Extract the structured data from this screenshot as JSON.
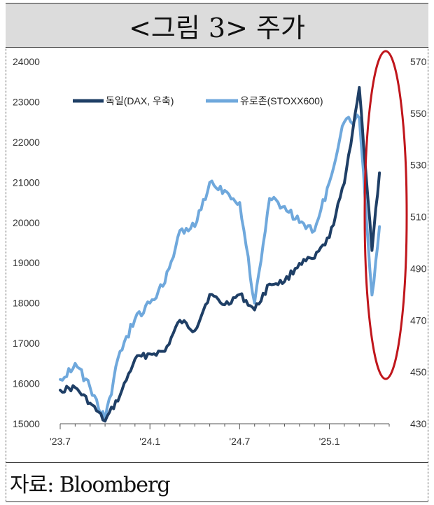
{
  "title": "<그림 3> 주가",
  "source": "자료: Bloomberg",
  "colors": {
    "dax": "#1f3f66",
    "stoxx": "#6fa8dc",
    "circle": "#c0161c"
  },
  "chart_data": {
    "type": "line",
    "title": "<그림 3> 주가",
    "x_ticks": [
      "'23.7",
      "'24.1",
      "'24.7",
      "'25.1"
    ],
    "y_left": {
      "min": 15000,
      "max": 24000,
      "ticks": [
        15000,
        16000,
        17000,
        18000,
        19000,
        20000,
        21000,
        22000,
        23000,
        24000
      ]
    },
    "y_right": {
      "min": 430,
      "max": 570,
      "ticks": [
        430,
        450,
        470,
        490,
        510,
        530,
        550,
        570
      ]
    },
    "legend_position": "top-left",
    "x_range": [
      "2023-07",
      "2025-04"
    ],
    "series": [
      {
        "name": "독일(DAX, 우축)",
        "axis": "right",
        "dates": [
          "2023-07",
          "2023-08",
          "2023-09",
          "2023-10",
          "2023-11",
          "2023-12",
          "2024-01",
          "2024-02",
          "2024-03",
          "2024-04",
          "2024-05",
          "2024-06",
          "2024-07",
          "2024-08",
          "2024-09",
          "2024-10",
          "2024-11",
          "2024-12",
          "2025-01",
          "2025-02",
          "2025-03",
          "2025-04a",
          "2025-04b"
        ],
        "values": [
          443,
          444,
          438,
          431,
          441,
          455,
          457,
          458,
          470,
          466,
          480,
          476,
          480,
          474,
          484,
          485,
          492,
          494,
          502,
          523,
          560,
          497,
          527
        ]
      },
      {
        "name": "유로존(STOXX600)",
        "axis": "left",
        "dates": [
          "2023-07",
          "2023-08",
          "2023-09",
          "2023-10",
          "2023-11",
          "2023-12",
          "2024-01",
          "2024-02",
          "2024-03",
          "2024-04",
          "2024-05",
          "2024-06",
          "2024-07",
          "2024-08",
          "2024-09",
          "2024-10",
          "2024-11",
          "2024-12",
          "2025-01",
          "2025-02",
          "2025-03",
          "2025-04a",
          "2025-04b"
        ],
        "values": [
          16100,
          16500,
          15900,
          15100,
          16800,
          17600,
          18000,
          18500,
          19800,
          19900,
          21000,
          20800,
          20500,
          18000,
          20600,
          20400,
          20000,
          19800,
          21000,
          22500,
          22600,
          18200,
          19900
        ]
      }
    ]
  }
}
